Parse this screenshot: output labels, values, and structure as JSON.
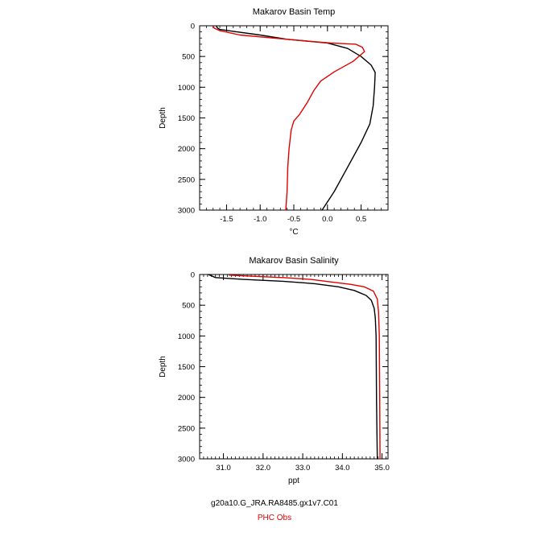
{
  "chart_data": [
    {
      "type": "line",
      "title": "Makarov Basin Temp",
      "xlabel": "°C",
      "ylabel": "Depth",
      "xlim": [
        -1.9,
        0.9
      ],
      "ylim": [
        3000,
        0
      ],
      "y_inverted": true,
      "xticks": [
        -1.5,
        -1.0,
        -0.5,
        0.0,
        0.5
      ],
      "xtick_labels": [
        "-1.5",
        "-1.0",
        "-0.5",
        "0.0",
        "0.5"
      ],
      "yticks": [
        0,
        500,
        1000,
        1500,
        2000,
        2500,
        3000
      ],
      "ytick_labels": [
        "0",
        "500",
        "1000",
        "1500",
        "2000",
        "2500",
        "3000"
      ],
      "series": [
        {
          "color": "#000000",
          "points": [
            [
              -1.65,
              10
            ],
            [
              -1.63,
              40
            ],
            [
              -1.6,
              60
            ],
            [
              -1.4,
              90
            ],
            [
              -1.0,
              150
            ],
            [
              -0.6,
              220
            ],
            [
              0.0,
              280
            ],
            [
              0.3,
              370
            ],
            [
              0.5,
              500
            ],
            [
              0.65,
              640
            ],
            [
              0.71,
              760
            ],
            [
              0.7,
              1000
            ],
            [
              0.68,
              1300
            ],
            [
              0.63,
              1600
            ],
            [
              0.5,
              1900
            ],
            [
              0.3,
              2300
            ],
            [
              0.1,
              2700
            ],
            [
              -0.08,
              3000
            ]
          ]
        },
        {
          "color": "#e00000",
          "points": [
            [
              -1.7,
              10
            ],
            [
              -1.68,
              40
            ],
            [
              -1.6,
              80
            ],
            [
              -1.3,
              150
            ],
            [
              -0.8,
              200
            ],
            [
              -0.4,
              240
            ],
            [
              0.05,
              280
            ],
            [
              0.42,
              300
            ],
            [
              0.52,
              350
            ],
            [
              0.55,
              420
            ],
            [
              0.38,
              580
            ],
            [
              0.1,
              750
            ],
            [
              -0.1,
              900
            ],
            [
              -0.2,
              1050
            ],
            [
              -0.3,
              1250
            ],
            [
              -0.42,
              1450
            ],
            [
              -0.5,
              1550
            ],
            [
              -0.54,
              1700
            ],
            [
              -0.57,
              2000
            ],
            [
              -0.59,
              2300
            ],
            [
              -0.6,
              2700
            ],
            [
              -0.62,
              3000
            ]
          ]
        }
      ]
    },
    {
      "type": "line",
      "title": "Makarov Basin Salinity",
      "xlabel": "ppt",
      "ylabel": "Depth",
      "xlim": [
        30.4,
        35.15
      ],
      "ylim": [
        3000,
        0
      ],
      "y_inverted": true,
      "xticks": [
        31.0,
        32.0,
        33.0,
        34.0,
        35.0
      ],
      "xtick_labels": [
        "31.0",
        "32.0",
        "33.0",
        "34.0",
        "35.0"
      ],
      "yticks": [
        0,
        500,
        1000,
        1500,
        2000,
        2500,
        3000
      ],
      "ytick_labels": [
        "0",
        "500",
        "1000",
        "1500",
        "2000",
        "2500",
        "3000"
      ],
      "series": [
        {
          "color": "#000000",
          "points": [
            [
              30.62,
              0
            ],
            [
              30.8,
              50
            ],
            [
              31.5,
              80
            ],
            [
              32.5,
              110
            ],
            [
              33.3,
              150
            ],
            [
              33.9,
              200
            ],
            [
              34.3,
              260
            ],
            [
              34.6,
              340
            ],
            [
              34.73,
              420
            ],
            [
              34.8,
              550
            ],
            [
              34.83,
              700
            ],
            [
              34.85,
              1000
            ],
            [
              34.86,
              2000
            ],
            [
              34.88,
              3000
            ]
          ]
        },
        {
          "color": "#e00000",
          "points": [
            [
              31.15,
              10
            ],
            [
              31.8,
              30
            ],
            [
              32.5,
              50
            ],
            [
              33.2,
              80
            ],
            [
              33.7,
              120
            ],
            [
              34.2,
              160
            ],
            [
              34.55,
              200
            ],
            [
              34.78,
              270
            ],
            [
              34.88,
              400
            ],
            [
              34.91,
              600
            ],
            [
              34.93,
              1000
            ],
            [
              34.94,
              2000
            ],
            [
              34.95,
              3000
            ]
          ]
        }
      ]
    }
  ],
  "legend": {
    "model_label": "g20a10.G_JRA.RA8485.gx1v7.C01",
    "model_color": "#000000",
    "obs_label": "PHC Obs",
    "obs_color": "#e00000"
  }
}
